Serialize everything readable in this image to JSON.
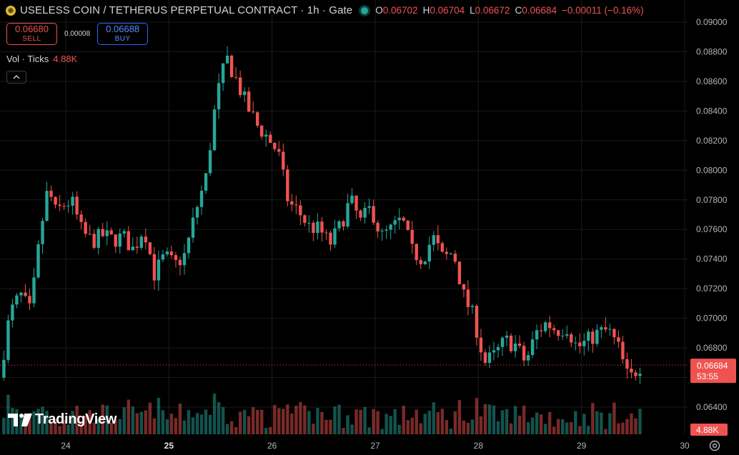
{
  "header": {
    "coin_icon": "coin-icon",
    "title": "USELESS COIN / TETHERUS PERPETUAL CONTRACT · 1h · Gate",
    "status_color": "#26a69a",
    "ohlc": [
      {
        "k": "O",
        "v": "0.06702"
      },
      {
        "k": "H",
        "v": "0.06704"
      },
      {
        "k": "L",
        "v": "0.06672"
      },
      {
        "k": "C",
        "v": "0.06684"
      },
      {
        "k": "",
        "v": "−0.00011 (−0.16%)"
      }
    ]
  },
  "trade": {
    "sell_price": "0.06680",
    "sell_label": "SELL",
    "spread": "0.00008",
    "buy_price": "0.06688",
    "buy_label": "BUY"
  },
  "volume_legend": {
    "label": "Vol · Ticks",
    "value": "4.88K"
  },
  "logo_text": "TradingView",
  "colors": {
    "up": "#26a69a",
    "down": "#ef5350",
    "background": "#000000",
    "grid": "#1a1a1a",
    "axis_text": "#b2b5be"
  },
  "chart_data": {
    "type": "candlestick",
    "y_axis": {
      "range": [
        0.0626,
        0.0908
      ],
      "ticks": [
        "0.09000",
        "0.08800",
        "0.08600",
        "0.08400",
        "0.08200",
        "0.08000",
        "0.07800",
        "0.07600",
        "0.07400",
        "0.07200",
        "0.07000",
        "0.06800",
        "0.06600",
        "0.06400"
      ]
    },
    "x_axis": {
      "range": [
        23.4,
        30.0
      ],
      "ticks": [
        {
          "v": 24,
          "label": "24",
          "bold": false
        },
        {
          "v": 25,
          "label": "25",
          "bold": true
        },
        {
          "v": 26,
          "label": "26",
          "bold": false
        },
        {
          "v": 27,
          "label": "27",
          "bold": false
        },
        {
          "v": 28,
          "label": "28",
          "bold": false
        },
        {
          "v": 29,
          "label": "29",
          "bold": false
        },
        {
          "v": 30,
          "label": "30",
          "bold": false
        }
      ]
    },
    "last_price": {
      "value": 0.06684,
      "label": "0.06684",
      "countdown": "53:55"
    },
    "volume_badge": "4.88K",
    "control_points": [
      [
        23.4,
        0.066
      ],
      [
        23.5,
        0.0703
      ],
      [
        23.6,
        0.0716
      ],
      [
        23.7,
        0.0704
      ],
      [
        23.8,
        0.076
      ],
      [
        23.87,
        0.0788
      ],
      [
        23.95,
        0.077
      ],
      [
        24.0,
        0.0776
      ],
      [
        24.1,
        0.0779
      ],
      [
        24.2,
        0.0758
      ],
      [
        24.3,
        0.0752
      ],
      [
        24.4,
        0.0756
      ],
      [
        24.5,
        0.0753
      ],
      [
        24.6,
        0.0755
      ],
      [
        24.7,
        0.0746
      ],
      [
        24.8,
        0.0762
      ],
      [
        24.9,
        0.073
      ],
      [
        25.0,
        0.0742
      ],
      [
        25.1,
        0.0736
      ],
      [
        25.2,
        0.0743
      ],
      [
        25.3,
        0.0772
      ],
      [
        25.4,
        0.0795
      ],
      [
        25.5,
        0.0848
      ],
      [
        25.6,
        0.0876
      ],
      [
        25.7,
        0.086
      ],
      [
        25.8,
        0.0843
      ],
      [
        25.9,
        0.083
      ],
      [
        26.0,
        0.0822
      ],
      [
        26.1,
        0.0812
      ],
      [
        26.2,
        0.0778
      ],
      [
        26.3,
        0.0772
      ],
      [
        26.4,
        0.0762
      ],
      [
        26.5,
        0.076
      ],
      [
        26.6,
        0.075
      ],
      [
        26.7,
        0.0762
      ],
      [
        26.8,
        0.078
      ],
      [
        26.9,
        0.0765
      ],
      [
        27.0,
        0.0775
      ],
      [
        27.1,
        0.0755
      ],
      [
        27.2,
        0.076
      ],
      [
        27.3,
        0.0767
      ],
      [
        27.4,
        0.0745
      ],
      [
        27.5,
        0.074
      ],
      [
        27.6,
        0.0755
      ],
      [
        27.7,
        0.074
      ],
      [
        27.8,
        0.0745
      ],
      [
        27.9,
        0.0715
      ],
      [
        28.0,
        0.07
      ],
      [
        28.1,
        0.067
      ],
      [
        28.2,
        0.0675
      ],
      [
        28.3,
        0.0685
      ],
      [
        28.4,
        0.0682
      ],
      [
        28.5,
        0.067
      ],
      [
        28.6,
        0.069
      ],
      [
        28.7,
        0.0697
      ],
      [
        28.8,
        0.0692
      ],
      [
        28.9,
        0.0694
      ],
      [
        29.0,
        0.068
      ],
      [
        29.1,
        0.0685
      ],
      [
        29.2,
        0.069
      ],
      [
        29.3,
        0.0692
      ],
      [
        29.4,
        0.068
      ],
      [
        29.5,
        0.0658
      ],
      [
        29.6,
        0.0668
      ]
    ]
  }
}
